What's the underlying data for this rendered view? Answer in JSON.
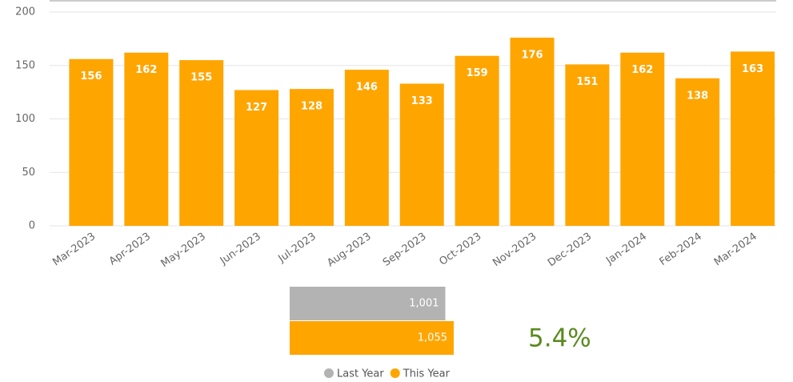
{
  "chart_data": [
    {
      "type": "bar",
      "categories": [
        "Mar-2023",
        "Apr-2023",
        "May-2023",
        "Jun-2023",
        "Jul-2023",
        "Aug-2023",
        "Sep-2023",
        "Oct-2023",
        "Nov-2023",
        "Dec-2023",
        "Jan-2024",
        "Feb-2024",
        "Mar-2024"
      ],
      "values": [
        156,
        162,
        155,
        127,
        128,
        146,
        133,
        159,
        176,
        151,
        162,
        138,
        163
      ],
      "color": "#ffa500",
      "ylim": [
        0,
        200
      ],
      "yticks": [
        0,
        50,
        100,
        150,
        200
      ],
      "grid": true
    },
    {
      "type": "hbar",
      "series": [
        {
          "name": "Last Year",
          "color": "#b3b3b3",
          "values": [
            1001
          ],
          "value_labels": [
            "1,001"
          ]
        },
        {
          "name": "This Year",
          "color": "#ffa500",
          "values": [
            1055
          ],
          "value_labels": [
            "1,055"
          ]
        }
      ],
      "annotation": "5.4%",
      "annotation_color": "#5a8a1e",
      "legend": "bottom"
    }
  ]
}
